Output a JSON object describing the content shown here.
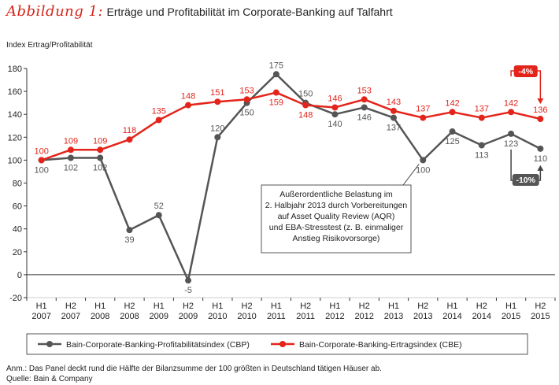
{
  "title_label": "Abbildung 1:",
  "title": "Erträge und Profitabilität im Corporate-Banking auf Talfahrt",
  "notes": {
    "anm": "Anm.: Das Panel deckt rund die Hälfte der Bilanzsumme der 100 größten in Deutschland tätigen Häuser ab.",
    "quelle": "Quelle: Bain & Company"
  },
  "chart_data": {
    "type": "line",
    "title": "Erträge und Profitabilität im Corporate-Banking auf Talfahrt",
    "ylabel": "Index Ertrag/Profitabilität",
    "xlabel": "",
    "ylim": [
      -20,
      180
    ],
    "yticks": [
      -20,
      0,
      20,
      40,
      60,
      80,
      100,
      120,
      140,
      160,
      180
    ],
    "grid": false,
    "legend": "bottom",
    "categories": [
      [
        "H1",
        "2007"
      ],
      [
        "H2",
        "2007"
      ],
      [
        "H1",
        "2008"
      ],
      [
        "H2",
        "2008"
      ],
      [
        "H1",
        "2009"
      ],
      [
        "H2",
        "2009"
      ],
      [
        "H1",
        "2010"
      ],
      [
        "H2",
        "2010"
      ],
      [
        "H1",
        "2011"
      ],
      [
        "H2",
        "2011"
      ],
      [
        "H1",
        "2012"
      ],
      [
        "H2",
        "2012"
      ],
      [
        "H1",
        "2013"
      ],
      [
        "H2",
        "2013"
      ],
      [
        "H1",
        "2014"
      ],
      [
        "H2",
        "2014"
      ],
      [
        "H1",
        "2015"
      ],
      [
        "H2",
        "2015"
      ]
    ],
    "series": [
      {
        "name": "Bain-Corporate-Banking-Profitabilitätsindex (CBP)",
        "color": "#555555",
        "values": [
          100,
          102,
          102,
          39,
          52,
          -5,
          120,
          150,
          175,
          150,
          140,
          146,
          137,
          100,
          125,
          113,
          123,
          110
        ],
        "label_pos": [
          "below",
          "below",
          "below",
          "below",
          "above",
          "below",
          "above",
          "below",
          "above",
          "above",
          "below",
          "below",
          "below",
          "below",
          "below",
          "below",
          "below",
          "below"
        ]
      },
      {
        "name": "Bain-Corporate-Banking-Ertragsindex (CBE)",
        "color": "#e3241b",
        "values": [
          100,
          109,
          109,
          118,
          135,
          148,
          151,
          153,
          159,
          148,
          146,
          153,
          143,
          137,
          142,
          137,
          142,
          136
        ],
        "label_pos": [
          "above",
          "above",
          "above",
          "above",
          "above",
          "above",
          "above",
          "above",
          "below",
          "below",
          "above",
          "above",
          "above",
          "above",
          "above",
          "above",
          "above",
          "above"
        ]
      }
    ],
    "annotations": {
      "callout": [
        "Außerordentliche Belastung im",
        "2. Halbjahr 2013 durch Vorbereitungen",
        "auf Asset Quality Review (AQR)",
        "und EBA-Stresstest (z. B. einmaliger",
        "Anstieg Risikovorsorge)"
      ],
      "callout_target": 13,
      "cbe_change": "-4%",
      "cbp_change": "-10%"
    }
  }
}
